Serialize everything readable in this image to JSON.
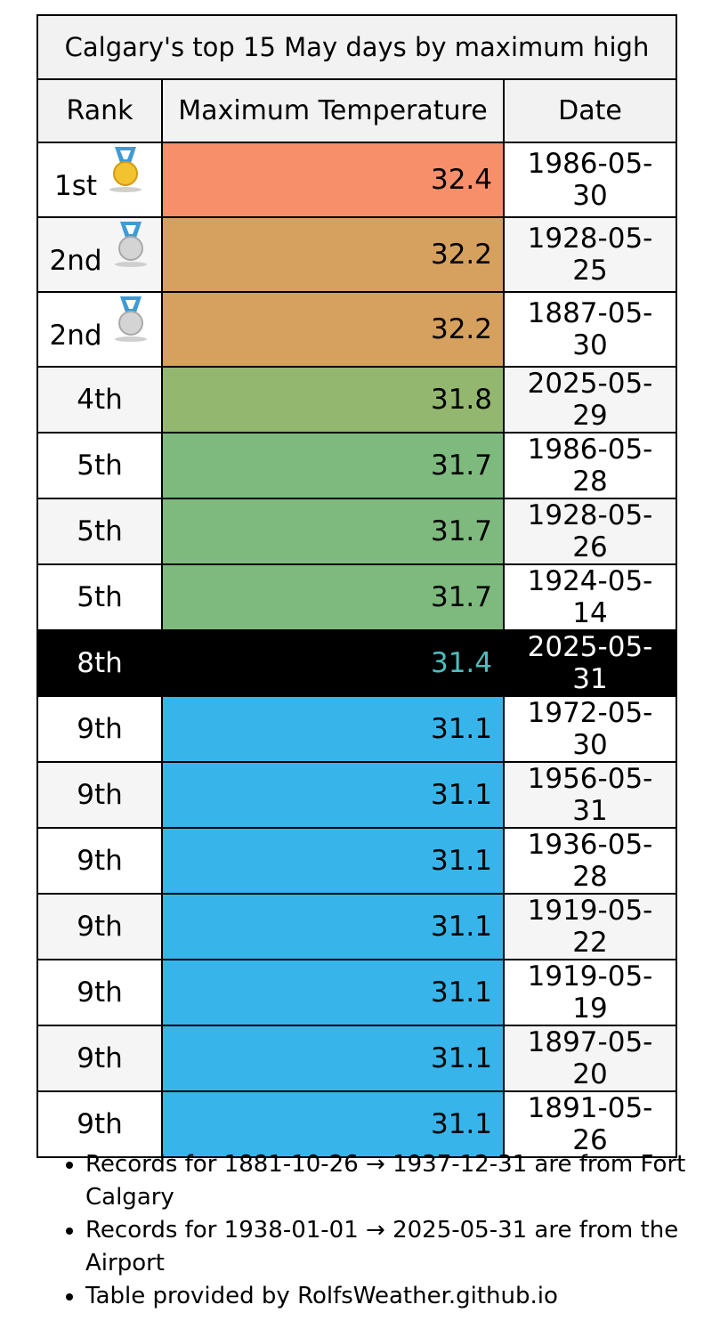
{
  "table": {
    "caption": "Calgary's top 15 May days by maximum high",
    "headers": {
      "rank": "Rank",
      "temp": "Maximum Temperature",
      "date": "Date"
    },
    "rows": [
      {
        "rank": "1st",
        "medal": "gold-medal-icon",
        "temp": "32.4",
        "date": "1986-05-30",
        "color": "#f78f6b"
      },
      {
        "rank": "2nd",
        "medal": "silver-medal-icon",
        "temp": "32.2",
        "date": "1928-05-25",
        "color": "#d6a05e"
      },
      {
        "rank": "2nd",
        "medal": "silver-medal-icon",
        "temp": "32.2",
        "date": "1887-05-30",
        "color": "#d6a05e"
      },
      {
        "rank": "4th",
        "medal": "",
        "temp": "31.8",
        "date": "2025-05-29",
        "color": "#94b76f"
      },
      {
        "rank": "5th",
        "medal": "",
        "temp": "31.7",
        "date": "1986-05-28",
        "color": "#7eba7e"
      },
      {
        "rank": "5th",
        "medal": "",
        "temp": "31.7",
        "date": "1928-05-26",
        "color": "#7eba7e"
      },
      {
        "rank": "5th",
        "medal": "",
        "temp": "31.7",
        "date": "1924-05-14",
        "color": "#7eba7e"
      },
      {
        "rank": "8th",
        "medal": "",
        "temp": "31.4",
        "date": "2025-05-31",
        "color": "#000000",
        "highlight": true
      },
      {
        "rank": "9th",
        "medal": "",
        "temp": "31.1",
        "date": "1972-05-30",
        "color": "#37b5ea"
      },
      {
        "rank": "9th",
        "medal": "",
        "temp": "31.1",
        "date": "1956-05-31",
        "color": "#37b5ea"
      },
      {
        "rank": "9th",
        "medal": "",
        "temp": "31.1",
        "date": "1936-05-28",
        "color": "#37b5ea"
      },
      {
        "rank": "9th",
        "medal": "",
        "temp": "31.1",
        "date": "1919-05-22",
        "color": "#37b5ea"
      },
      {
        "rank": "9th",
        "medal": "",
        "temp": "31.1",
        "date": "1919-05-19",
        "color": "#37b5ea"
      },
      {
        "rank": "9th",
        "medal": "",
        "temp": "31.1",
        "date": "1897-05-20",
        "color": "#37b5ea"
      },
      {
        "rank": "9th",
        "medal": "",
        "temp": "31.1",
        "date": "1891-05-26",
        "color": "#37b5ea"
      }
    ]
  },
  "notes": [
    "Records for 1881-10-26 → 1937-12-31 are from Fort Calgary",
    "Records for 1938-01-01 → 2025-05-31 are from the Airport",
    "Table provided by RolfsWeather.github.io"
  ]
}
